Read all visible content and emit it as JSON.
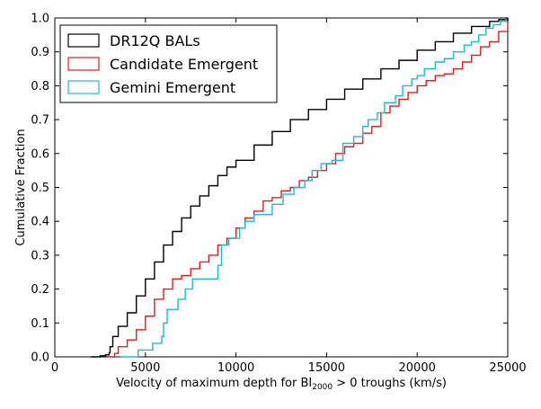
{
  "chart_data": {
    "type": "line",
    "step": true,
    "xlabel": {
      "prefix": "Velocity of maximum depth for BI",
      "subscript": "2000",
      "suffix": " > 0 troughs (km/s)"
    },
    "ylabel": "Cumulative Fraction",
    "xlim": [
      0,
      25000
    ],
    "ylim": [
      0,
      1.0
    ],
    "xticks": [
      0,
      5000,
      10000,
      15000,
      20000,
      25000
    ],
    "yticks": [
      0.0,
      0.1,
      0.2,
      0.3,
      0.4,
      0.5,
      0.6,
      0.7,
      0.8,
      0.9,
      1.0
    ],
    "grid": false,
    "legend_position": "top-left",
    "series": [
      {
        "name": "DR12Q BALs",
        "color": "#000000",
        "x": [
          2000,
          2500,
          2800,
          3000,
          3050,
          3200,
          3500,
          4000,
          4500,
          5000,
          5500,
          6000,
          6500,
          7000,
          7500,
          8000,
          8500,
          9000,
          9500,
          10000,
          11000,
          12000,
          13000,
          14000,
          15000,
          16000,
          17000,
          18000,
          19000,
          20000,
          21000,
          22000,
          23000,
          24000,
          24500,
          25000
        ],
        "y": [
          0.0,
          0.003,
          0.006,
          0.012,
          0.03,
          0.06,
          0.09,
          0.13,
          0.18,
          0.23,
          0.28,
          0.33,
          0.37,
          0.41,
          0.445,
          0.475,
          0.505,
          0.535,
          0.56,
          0.58,
          0.625,
          0.665,
          0.7,
          0.73,
          0.76,
          0.79,
          0.82,
          0.85,
          0.875,
          0.905,
          0.93,
          0.955,
          0.975,
          0.99,
          0.995,
          1.0
        ]
      },
      {
        "name": "Candidate Emergent",
        "color": "#e41a1c",
        "x": [
          3000,
          3300,
          3500,
          4000,
          4500,
          5000,
          5500,
          6000,
          6500,
          7000,
          7500,
          8000,
          8500,
          9000,
          9500,
          10000,
          10500,
          11000,
          11500,
          12000,
          12500,
          13000,
          13500,
          14000,
          14500,
          15000,
          15500,
          16000,
          16500,
          17000,
          17500,
          18000,
          18500,
          19000,
          19500,
          20000,
          20500,
          21000,
          21500,
          22000,
          22500,
          23000,
          23500,
          24000,
          24500,
          25000
        ],
        "y": [
          0.0,
          0.01,
          0.03,
          0.05,
          0.08,
          0.12,
          0.17,
          0.2,
          0.23,
          0.24,
          0.26,
          0.28,
          0.3,
          0.33,
          0.35,
          0.38,
          0.41,
          0.43,
          0.46,
          0.47,
          0.49,
          0.5,
          0.52,
          0.53,
          0.55,
          0.57,
          0.6,
          0.62,
          0.63,
          0.66,
          0.68,
          0.72,
          0.74,
          0.76,
          0.78,
          0.8,
          0.815,
          0.83,
          0.835,
          0.85,
          0.87,
          0.89,
          0.915,
          0.93,
          0.96,
          1.0
        ]
      },
      {
        "name": "Gemini Emergent",
        "color": "#17becf",
        "x": [
          3600,
          4600,
          5400,
          5900,
          6000,
          6200,
          6800,
          7200,
          7600,
          9000,
          9200,
          9600,
          10200,
          10500,
          11000,
          12000,
          12600,
          13200,
          13800,
          14200,
          14700,
          15300,
          15900,
          16500,
          17000,
          17300,
          17800,
          18200,
          18800,
          19200,
          19700,
          20000,
          20400,
          21000,
          21500,
          22000,
          22600,
          23000,
          23400,
          23800,
          24200,
          24600,
          24900,
          25000
        ],
        "y": [
          0.0,
          0.02,
          0.04,
          0.06,
          0.1,
          0.14,
          0.17,
          0.2,
          0.23,
          0.27,
          0.33,
          0.35,
          0.38,
          0.4,
          0.42,
          0.45,
          0.48,
          0.5,
          0.52,
          0.55,
          0.57,
          0.58,
          0.63,
          0.65,
          0.68,
          0.7,
          0.72,
          0.75,
          0.77,
          0.8,
          0.82,
          0.83,
          0.85,
          0.87,
          0.88,
          0.9,
          0.92,
          0.93,
          0.95,
          0.97,
          0.98,
          0.99,
          1.0,
          1.0
        ]
      }
    ]
  }
}
